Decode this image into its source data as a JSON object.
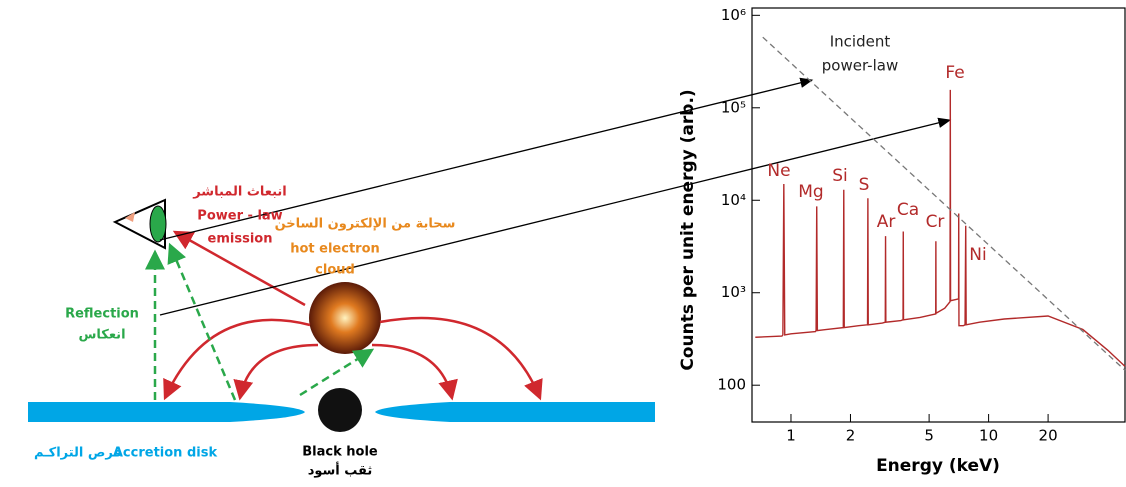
{
  "diagram": {
    "direct_emission": [
      "انبعاث المباشر",
      "Power - law",
      "emission"
    ],
    "cloud": [
      "سحابة من الإلكترون الساخن",
      "hot electron",
      "cloud"
    ],
    "reflection": [
      "Reflection",
      "انعكاس"
    ],
    "disk": [
      "قرص التراكـم",
      "Accretion disk"
    ],
    "black_hole": [
      "Black hole",
      "ثقب أسود"
    ]
  },
  "chart_data": {
    "type": "line",
    "x_label": "Energy (keV)",
    "y_label": "Counts per unit energy (arb.)",
    "log_x": true,
    "log_y": true,
    "xlim": [
      0.635,
      49
    ],
    "ylim": [
      40,
      1200000
    ],
    "xticks": [
      1,
      2,
      5,
      10,
      20
    ],
    "yticks": [
      100,
      {
        "value": 1000,
        "label": "10³"
      },
      {
        "value": 10000,
        "label": "10⁴"
      },
      {
        "value": 100000,
        "label": "10⁵"
      },
      {
        "value": 1000000,
        "label": "10⁶"
      }
    ],
    "annotations": [
      "Incident",
      "power-law",
      "Ne",
      "Mg",
      "Si",
      "S",
      "Ar",
      "Ca",
      "Cr",
      "Fe",
      "Ni"
    ],
    "series": [
      {
        "color": "#b22a2a",
        "dashed": false,
        "x": [
          0.66,
          0.9,
          0.91,
          0.92,
          0.93,
          1.0,
          1.33,
          1.34,
          1.35,
          1.36,
          1.5,
          1.84,
          1.85,
          1.86,
          2.2,
          2.44,
          2.45,
          2.46,
          2.9,
          3.0,
          3.01,
          3.02,
          3.6,
          3.69,
          3.7,
          3.71,
          4.5,
          5.4,
          5.41,
          5.42,
          6.0,
          6.38,
          6.4,
          6.42,
          6.9,
          7.05,
          7.06,
          7.08,
          7.45,
          7.6,
          7.66,
          7.7,
          9,
          12,
          20,
          30,
          40,
          49
        ],
        "values": [
          330,
          340,
          350,
          15000,
          350,
          360,
          380,
          390,
          8600,
          390,
          400,
          420,
          13000,
          420,
          440,
          450,
          10500,
          450,
          470,
          480,
          4100,
          480,
          500,
          510,
          4600,
          510,
          540,
          590,
          3600,
          600,
          680,
          800,
          156000,
          820,
          850,
          860,
          7200,
          440,
          440,
          450,
          5300,
          450,
          480,
          520,
          560,
          400,
          240,
          160
        ]
      },
      {
        "color": "#777777",
        "dashed": true,
        "x": [
          0.72,
          49
        ],
        "values": [
          580000,
          145
        ]
      }
    ]
  }
}
